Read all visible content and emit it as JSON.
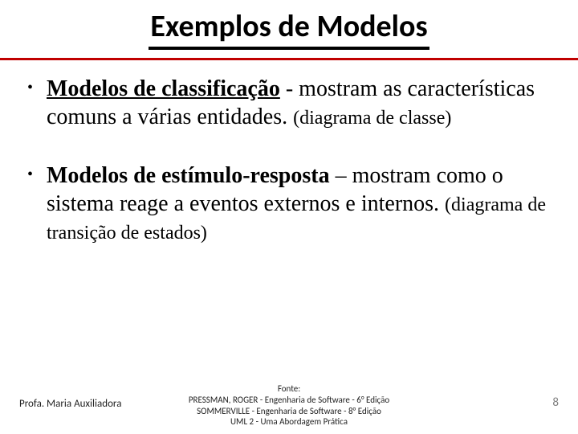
{
  "title": "Exemplos de Modelos",
  "bullets": [
    {
      "strong": "Modelos de classificação",
      "strong_underline": true,
      "rest": " - mostram as características comuns a várias entidades. ",
      "paren": "(diagrama de classe)"
    },
    {
      "strong": "Modelos de estímulo-resposta",
      "strong_underline": false,
      "rest": " – mostram como o sistema reage a eventos externos e internos. ",
      "paren": "(diagrama de transição de estados)"
    }
  ],
  "footer": {
    "prof": "Profa. Maria Auxiliadora",
    "fonte_label": "Fonte:",
    "line1": "PRESSMAN, ROGER - Engenharia de Software - 6° Edição",
    "line2": "SOMMERVILLE      - Engenharia de Software - 8° Edição",
    "line3": "UML 2 - Uma Abordagem Prática",
    "page": "8"
  },
  "colors": {
    "rule": "#c00000",
    "pagenum": "#7f7f7f"
  },
  "fonts": {
    "title_family": "Calibri",
    "body_family": "Times New Roman",
    "title_size_pt": 28,
    "body_size_pt": 21,
    "paren_size_pt": 18,
    "footer_size_pt": 9
  }
}
